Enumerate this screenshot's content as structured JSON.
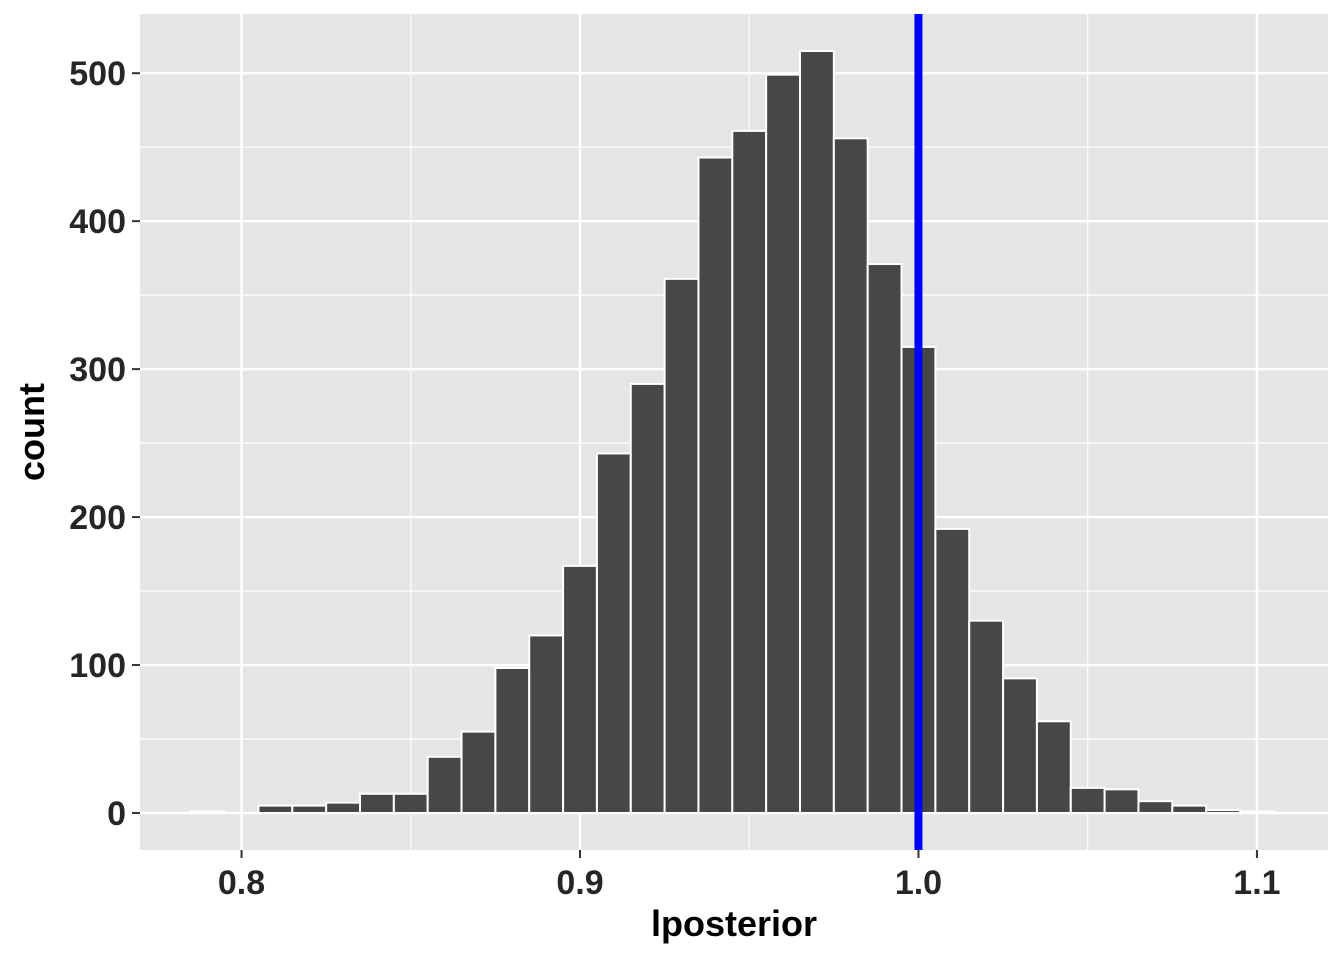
{
  "chart_data": {
    "type": "bar",
    "subtype": "histogram",
    "xlabel": "lposterior",
    "ylabel": "count",
    "xlim": [
      0.77,
      1.121
    ],
    "ylim": [
      -25,
      540
    ],
    "x_ticks": [
      0.8,
      0.9,
      1.0,
      1.1
    ],
    "x_tick_labels": [
      "0.8",
      "0.9",
      "1.0",
      "1.1"
    ],
    "y_ticks": [
      0,
      100,
      200,
      300,
      400,
      500
    ],
    "y_tick_labels": [
      "0",
      "100",
      "200",
      "300",
      "400",
      "500"
    ],
    "bin_width": 0.01,
    "bin_centers": [
      0.79,
      0.8,
      0.81,
      0.82,
      0.83,
      0.84,
      0.85,
      0.86,
      0.87,
      0.88,
      0.89,
      0.9,
      0.91,
      0.92,
      0.93,
      0.94,
      0.95,
      0.96,
      0.97,
      0.98,
      0.99,
      1.0,
      1.01,
      1.02,
      1.03,
      1.04,
      1.05,
      1.06,
      1.07,
      1.08,
      1.09,
      1.1
    ],
    "values": [
      1,
      0,
      5,
      5,
      7,
      13,
      13,
      38,
      55,
      98,
      120,
      167,
      243,
      290,
      361,
      443,
      461,
      499,
      515,
      456,
      371,
      315,
      192,
      130,
      91,
      62,
      17,
      16,
      8,
      5,
      2,
      1
    ],
    "vline": {
      "x": 1.0,
      "color": "#0000ff"
    },
    "grid": true,
    "colors": {
      "panel_background": "#e5e5e5",
      "grid_line": "#ffffff",
      "bar_fill": "#474747",
      "bar_outline": "#ffffff",
      "tick_mark": "#333333"
    }
  }
}
